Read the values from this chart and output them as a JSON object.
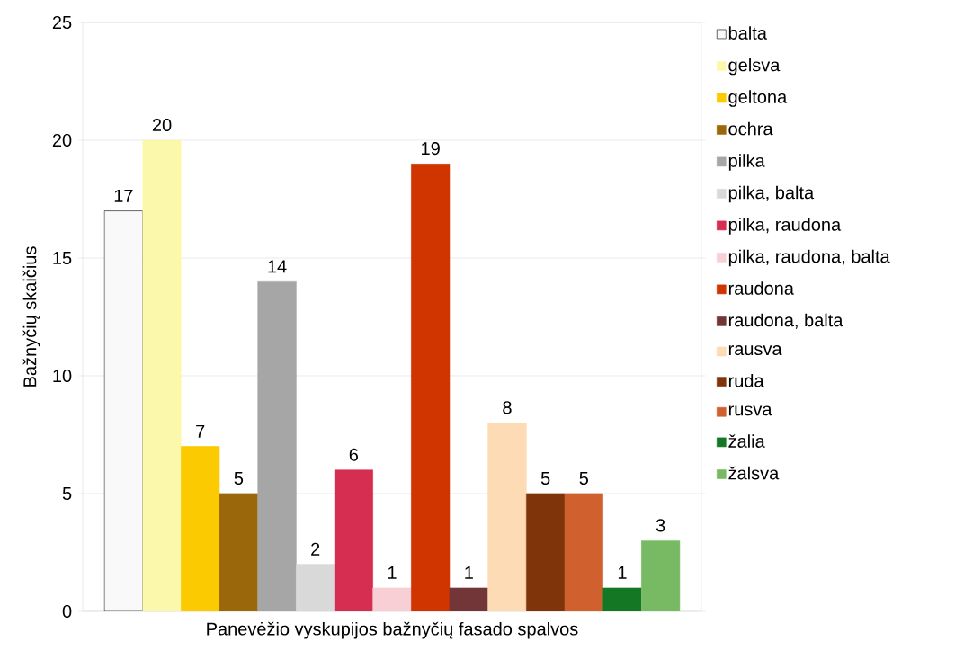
{
  "chart_data": {
    "type": "bar",
    "ylabel": "Bažnyčių skaičius",
    "categories": [
      "Panevėžio vyskupijos bažnyčių fasado spalvos"
    ],
    "ylim": [
      0,
      25
    ],
    "yticks": [
      0,
      5,
      10,
      15,
      20,
      25
    ],
    "grid": "y",
    "legend": "right",
    "data_labels": true,
    "series": [
      {
        "name": "balta",
        "color": "#f9f9f9",
        "values": [
          17
        ]
      },
      {
        "name": "gelsva",
        "color": "#fbf8ac",
        "values": [
          20
        ]
      },
      {
        "name": "geltona",
        "color": "#fbca00",
        "values": [
          7
        ]
      },
      {
        "name": "ochra",
        "color": "#9a680b",
        "values": [
          5
        ]
      },
      {
        "name": "pilka",
        "color": "#a6a6a6",
        "values": [
          14
        ]
      },
      {
        "name": "pilka, balta",
        "color": "#d9d9d9",
        "values": [
          2
        ]
      },
      {
        "name": "pilka, raudona",
        "color": "#d52e50",
        "values": [
          6
        ]
      },
      {
        "name": "pilka, raudona, balta",
        "color": "#f8cfd5",
        "values": [
          1
        ]
      },
      {
        "name": "raudona",
        "color": "#d03500",
        "values": [
          19
        ]
      },
      {
        "name": "raudona, balta",
        "color": "#733638",
        "values": [
          1
        ]
      },
      {
        "name": "rausva",
        "color": "#fddbb4",
        "values": [
          8
        ]
      },
      {
        "name": "ruda",
        "color": "#7f340a",
        "values": [
          5
        ]
      },
      {
        "name": "rusva",
        "color": "#d0612e",
        "values": [
          5
        ]
      },
      {
        "name": "žalia",
        "color": "#137723",
        "values": [
          1
        ]
      },
      {
        "name": "žalsva",
        "color": "#78ba63",
        "values": [
          3
        ]
      }
    ]
  }
}
